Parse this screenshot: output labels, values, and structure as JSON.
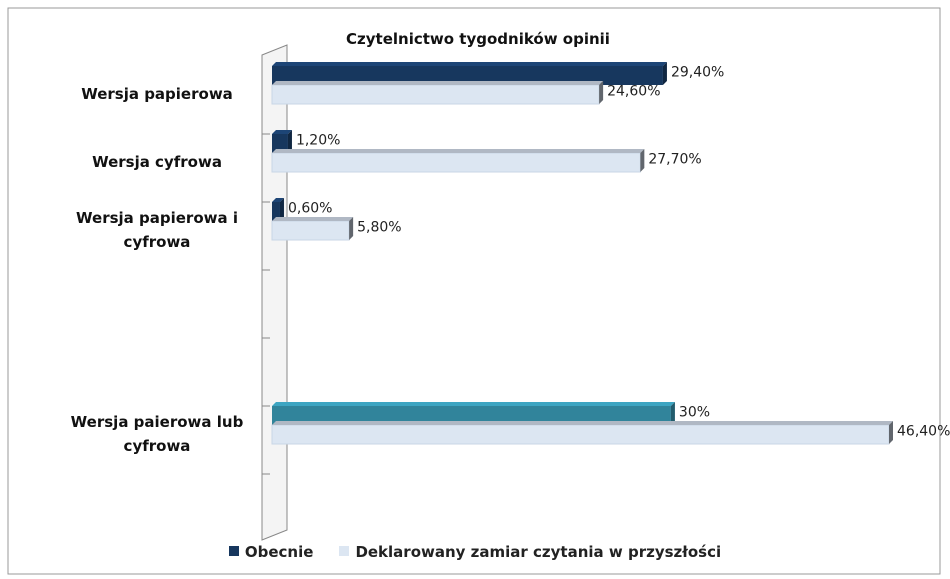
{
  "chart_data": {
    "type": "hbar3d",
    "title": "Czytelnictwo tygodników opinii",
    "categories": [
      "Wersja papierowa",
      "Wersja cyfrowa",
      "Wersja papierowa i cyfrowa",
      null,
      null,
      "Wersja paierowa lub cyfrowa",
      null
    ],
    "series": [
      {
        "name": "Obecnie",
        "color": "#17375e",
        "colors": [
          "#17375e",
          "#17375e",
          "#17375e",
          null,
          null,
          "#31849b",
          null
        ],
        "values": [
          29.4,
          1.2,
          0.6,
          null,
          null,
          30,
          null
        ],
        "value_labels": [
          "29,40%",
          "1,20%",
          "0,60%",
          null,
          null,
          "30%",
          null
        ]
      },
      {
        "name": "Deklarowany zamiar czytania w przyszłości",
        "color": "#dce6f2",
        "values": [
          24.6,
          27.7,
          5.8,
          null,
          null,
          46.4,
          null
        ],
        "value_labels": [
          "24,60%",
          "27,70%",
          "5,80%",
          null,
          null,
          "46,40%",
          null
        ]
      }
    ]
  }
}
